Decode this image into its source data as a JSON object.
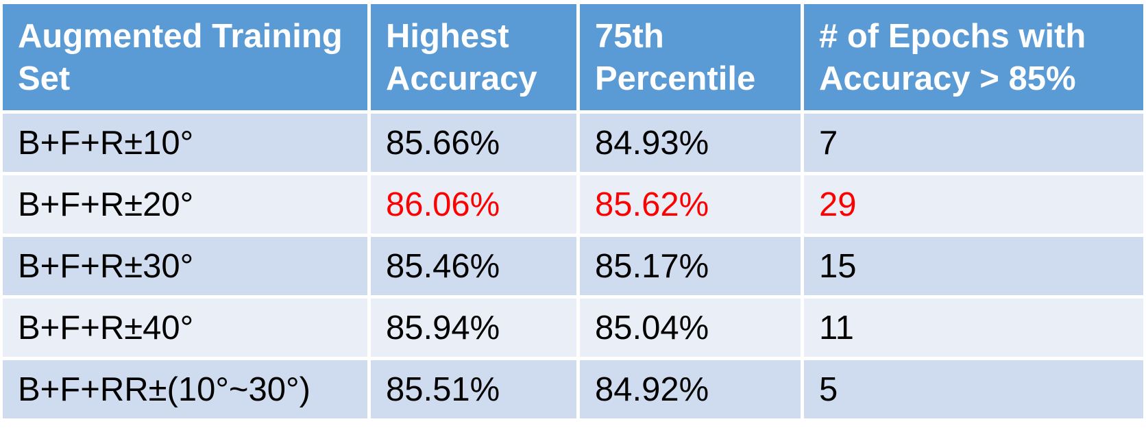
{
  "table": {
    "headers": [
      "Augmented Training Set",
      "Highest Accuracy",
      "75th Percentile",
      "# of Epochs with Accuracy > 85%"
    ],
    "rows": [
      {
        "cells": [
          "B+F+R±10°",
          "85.66%",
          "84.93%",
          "7"
        ],
        "highlight": false
      },
      {
        "cells": [
          "B+F+R±20°",
          "86.06%",
          "85.62%",
          "29"
        ],
        "highlight": true
      },
      {
        "cells": [
          "B+F+R±30°",
          "85.46%",
          "85.17%",
          "15"
        ],
        "highlight": false
      },
      {
        "cells": [
          "B+F+R±40°",
          "85.94%",
          "85.04%",
          "11"
        ],
        "highlight": false
      },
      {
        "cells": [
          "B+F+RR±(10°~30°)",
          "85.51%",
          "84.92%",
          "5"
        ],
        "highlight": false
      }
    ],
    "colors": {
      "header_bg": "#5b9bd5",
      "row_odd_bg": "#cfdbee",
      "row_even_bg": "#e9eef7",
      "highlight_text": "#ff0000"
    }
  }
}
